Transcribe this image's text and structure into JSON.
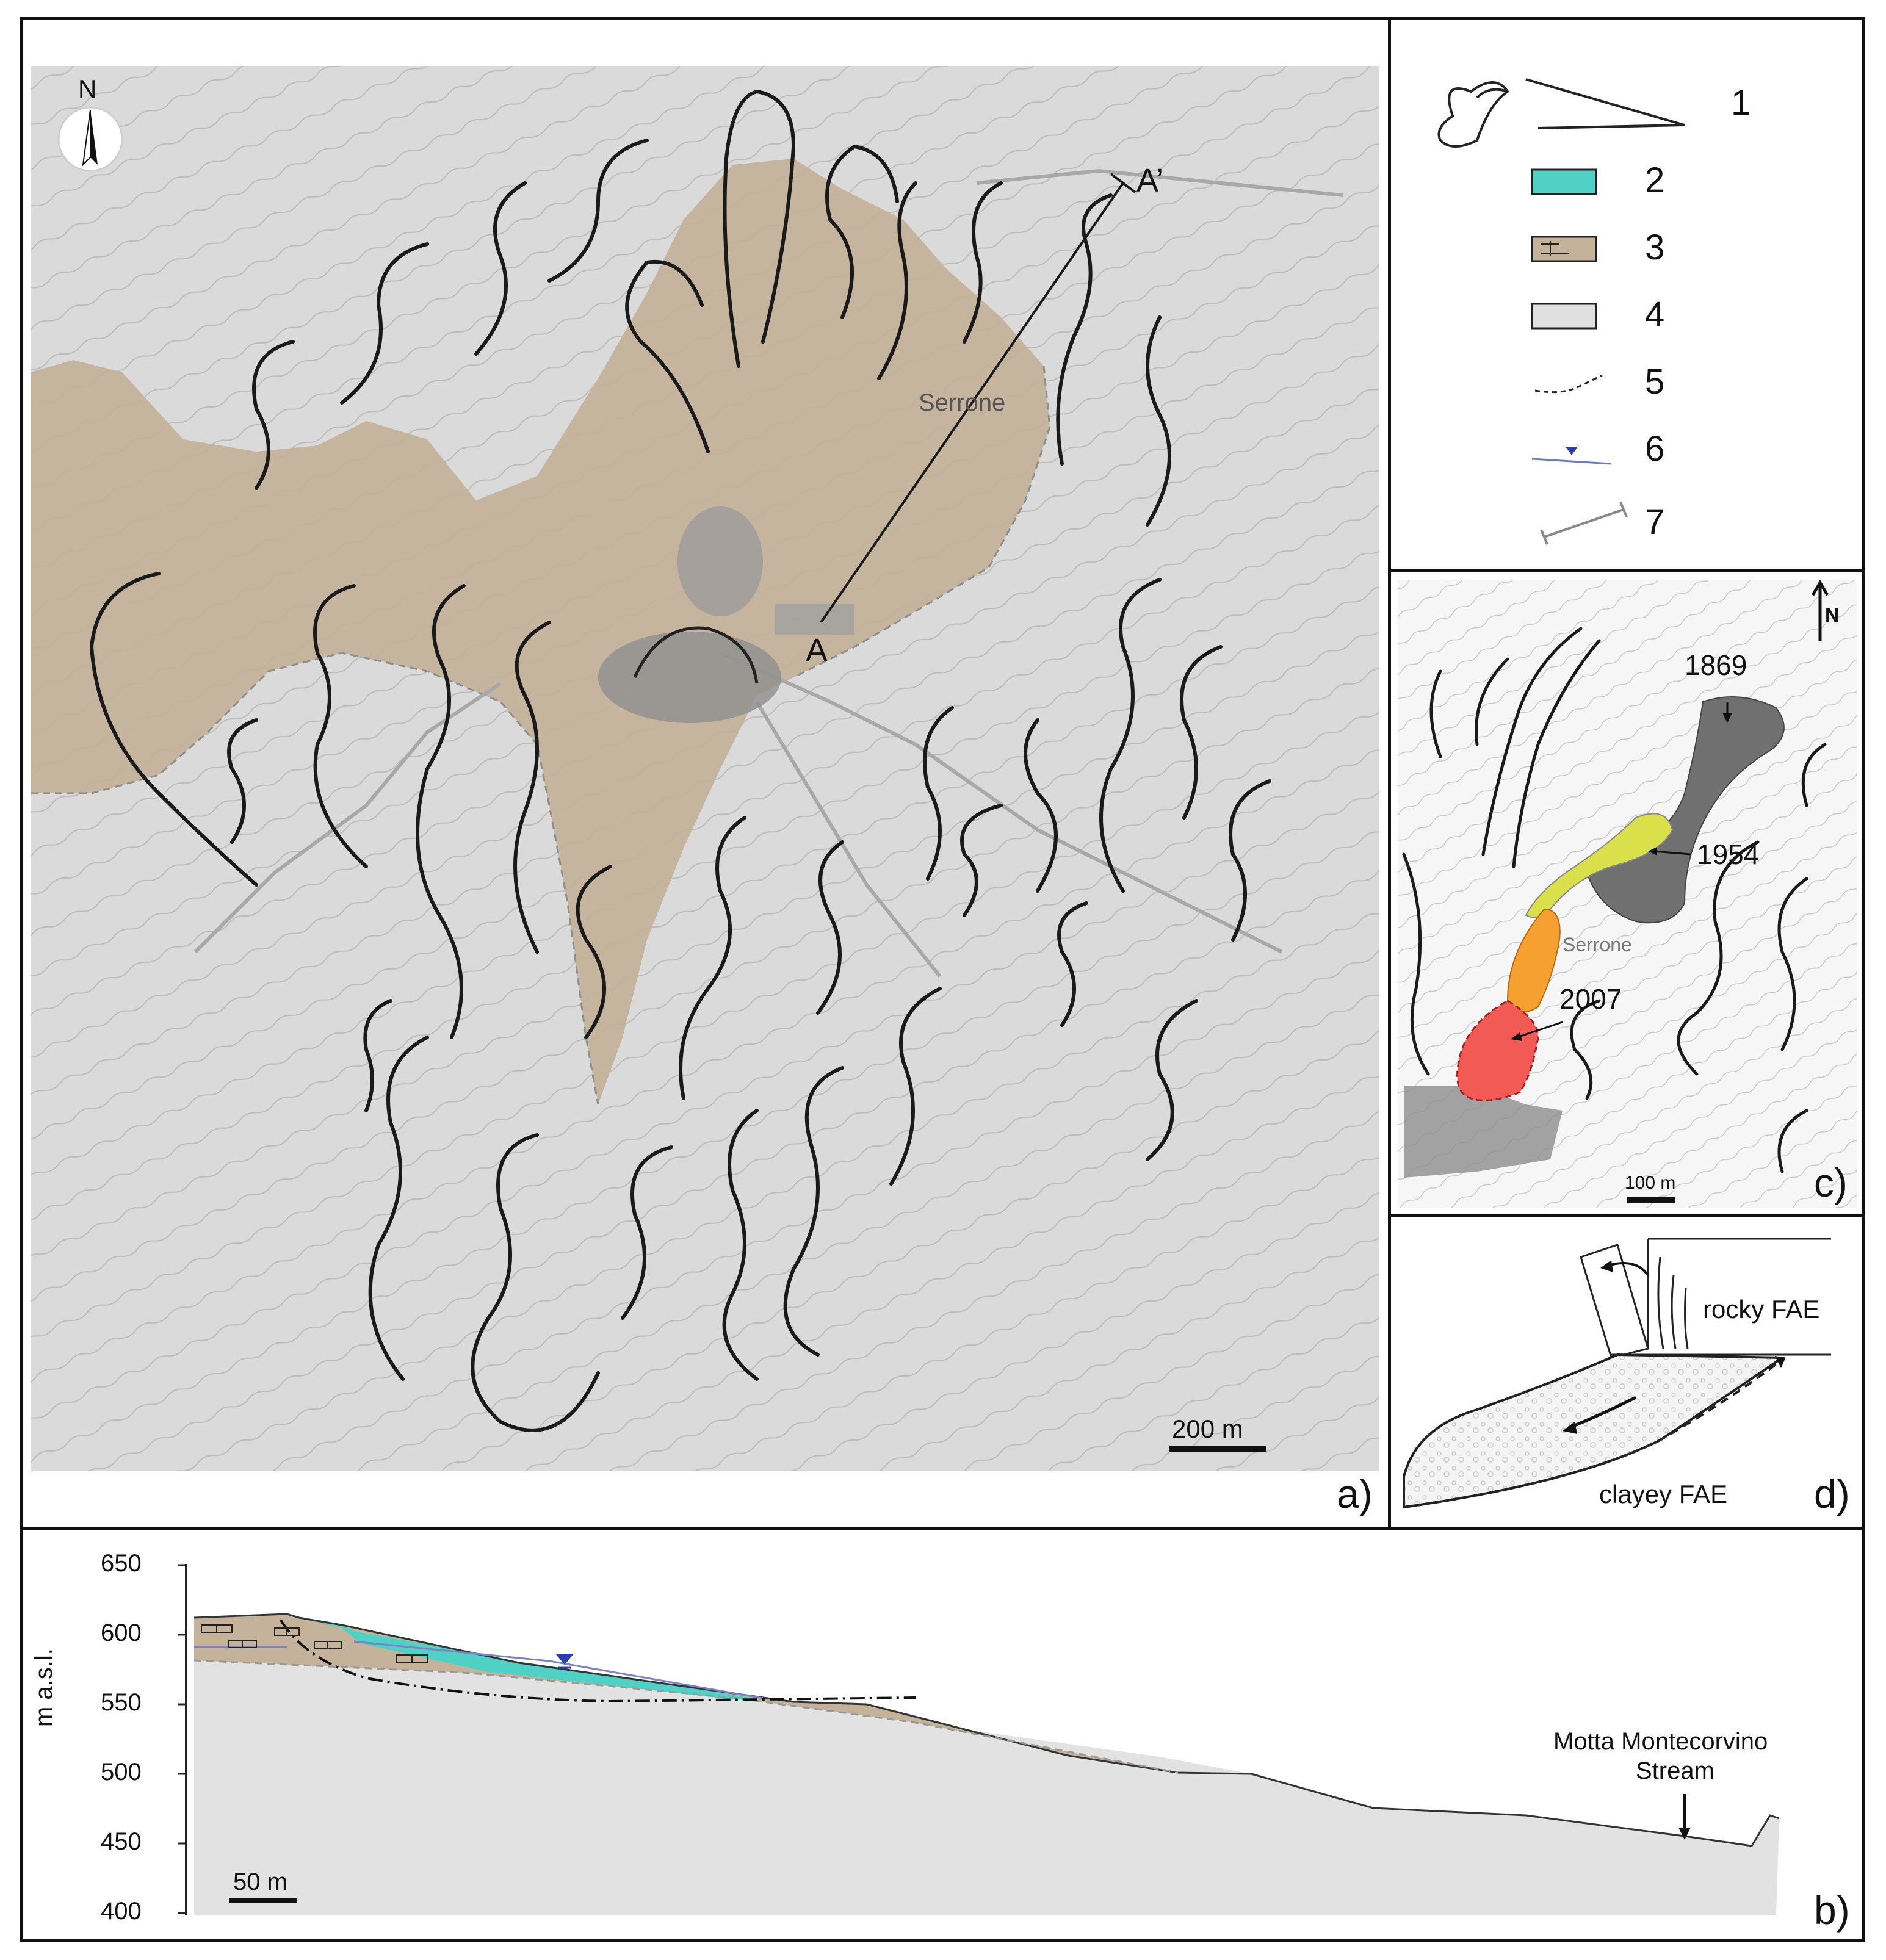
{
  "panel_a": {
    "id": "a)",
    "north": "N",
    "scale": "200 m",
    "place": "Serrone",
    "section_start": "A",
    "section_end": "A’"
  },
  "legend": {
    "items": [
      {
        "num": "1",
        "symbol": "landslide-outline"
      },
      {
        "num": "2",
        "symbol": "cyan-fill",
        "color": "#4fd1c5"
      },
      {
        "num": "3",
        "symbol": "brown-brick-fill",
        "color": "#c4b39a"
      },
      {
        "num": "4",
        "symbol": "grey-fill",
        "color": "#e0e0e0"
      },
      {
        "num": "5",
        "symbol": "dashed-line"
      },
      {
        "num": "6",
        "symbol": "water-table"
      },
      {
        "num": "7",
        "symbol": "section-trace"
      }
    ]
  },
  "panel_c": {
    "id": "c)",
    "north": "N",
    "scale": "100 m",
    "place": "Serrone",
    "events": [
      {
        "year": "1869",
        "color": "#707070"
      },
      {
        "year": "1954",
        "color": "#d9e04a"
      },
      {
        "year": "2007",
        "color": "#f25a55"
      }
    ],
    "event_2007_upper_color": "#f5a030"
  },
  "panel_d": {
    "id": "d)",
    "upper_unit": "rocky FAE",
    "lower_unit": "clayey FAE"
  },
  "panel_b": {
    "id": "b)",
    "ylabel": "m a.s.l.",
    "yticks": [
      "650",
      "600",
      "550",
      "500",
      "450",
      "400"
    ],
    "scale": "50 m",
    "stream_line1": "Motta Montecorvino",
    "stream_line2": "Stream"
  }
}
